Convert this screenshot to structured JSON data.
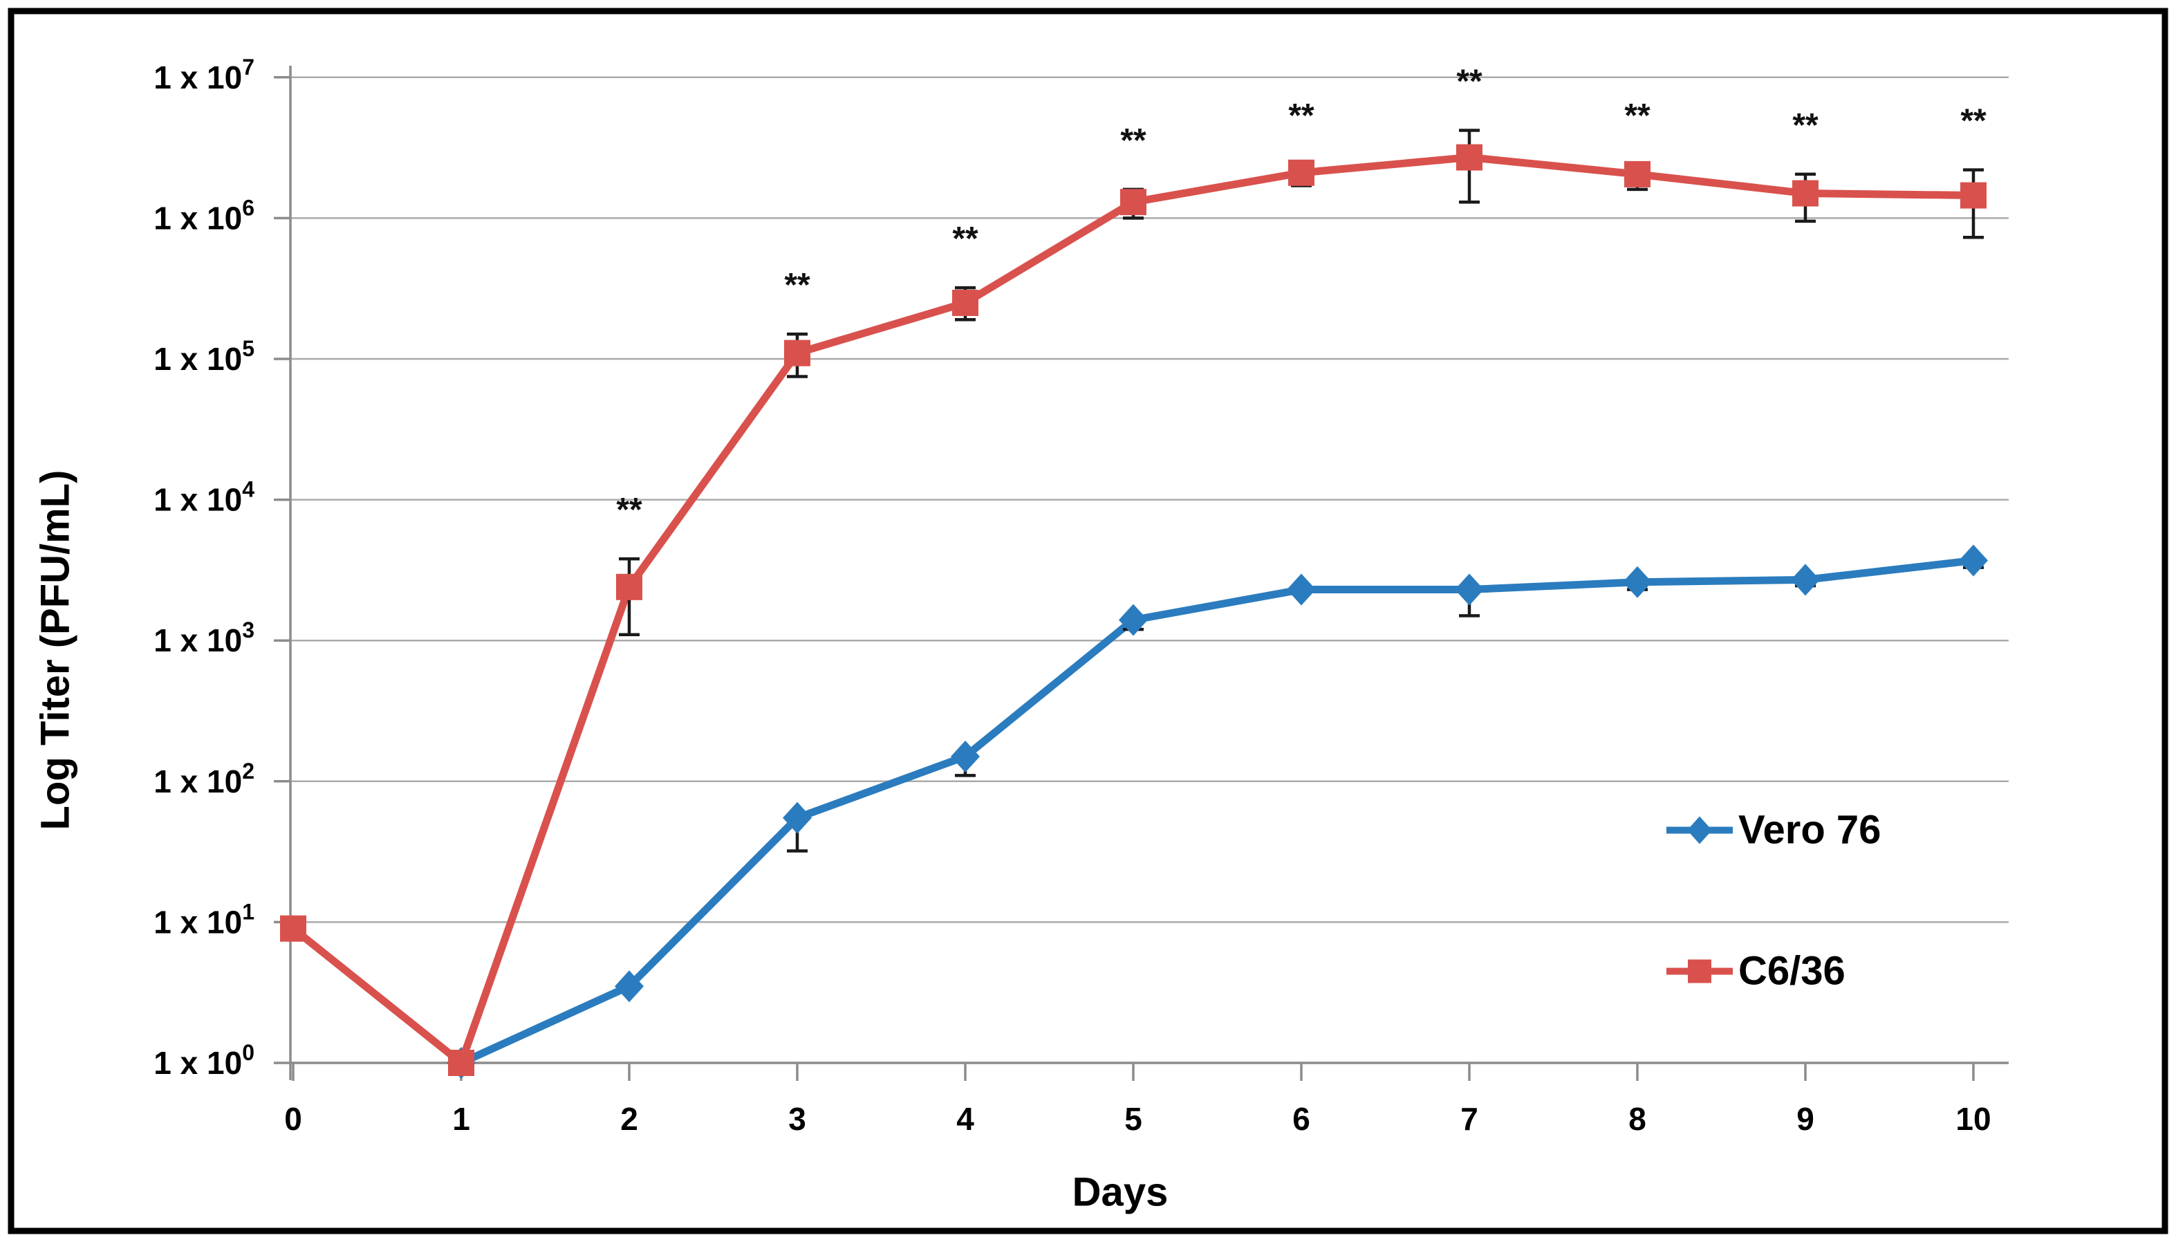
{
  "figure": {
    "background_color": "#ffffff",
    "frame_color": "#000000"
  },
  "chart_data": {
    "type": "line",
    "title": "",
    "xlabel": "Days",
    "ylabel": "Log Titer (PFU/mL)",
    "x_ticks": [
      "0",
      "1",
      "2",
      "3",
      "4",
      "5",
      "6",
      "7",
      "8",
      "9",
      "10"
    ],
    "y_axis": {
      "scale": "log10",
      "ylim": [
        1,
        10000000
      ],
      "tick_label_base": "1 x 10",
      "tick_exponents": [
        "0",
        "1",
        "2",
        "3",
        "4",
        "5",
        "6",
        "7"
      ]
    },
    "grid": {
      "shown": true,
      "color": "#ABABAB",
      "axis_color": "#8C8C8C"
    },
    "error_bar_color": "#1A1A1A",
    "significance": {
      "symbol": "**",
      "color": "#111111",
      "series": "C6/36",
      "days": [
        2,
        3,
        4,
        5,
        6,
        7,
        8,
        9,
        10
      ]
    },
    "series": [
      {
        "name": "Vero 76",
        "color": "#2B7CBE",
        "marker": "diamond",
        "points": [
          {
            "day": 1,
            "titer": 1
          },
          {
            "day": 2,
            "titer": 3.5
          },
          {
            "day": 3,
            "titer": 55,
            "err_lo": 32
          },
          {
            "day": 4,
            "titer": 150,
            "err_lo": 110
          },
          {
            "day": 5,
            "titer": 1400,
            "err_lo": 1200
          },
          {
            "day": 6,
            "titer": 2300
          },
          {
            "day": 7,
            "titer": 2300,
            "err_lo": 1500
          },
          {
            "day": 8,
            "titer": 2600,
            "err_lo": 2300
          },
          {
            "day": 9,
            "titer": 2700,
            "err_lo": 2450
          },
          {
            "day": 10,
            "titer": 3700,
            "err_lo": 3300
          }
        ]
      },
      {
        "name": "C6/36",
        "color": "#D9514D",
        "marker": "square",
        "points": [
          {
            "day": 0,
            "titer": 9
          },
          {
            "day": 1,
            "titer": 1
          },
          {
            "day": 2,
            "titer": 2400,
            "err_lo": 1100,
            "err_hi": 3800
          },
          {
            "day": 3,
            "titer": 110000,
            "err_lo": 75000,
            "err_hi": 150000
          },
          {
            "day": 4,
            "titer": 250000,
            "err_lo": 190000,
            "err_hi": 320000
          },
          {
            "day": 5,
            "titer": 1300000,
            "err_lo": 1000000,
            "err_hi": 1600000
          },
          {
            "day": 6,
            "titer": 2100000,
            "err_lo": 1700000,
            "err_hi": 2400000
          },
          {
            "day": 7,
            "titer": 2700000,
            "err_lo": 1300000,
            "err_hi": 4200000
          },
          {
            "day": 8,
            "titer": 2050000,
            "err_lo": 1600000,
            "err_hi": 2400000
          },
          {
            "day": 9,
            "titer": 1500000,
            "err_lo": 950000,
            "err_hi": 2050000
          },
          {
            "day": 10,
            "titer": 1450000,
            "err_lo": 730000,
            "err_hi": 2200000
          }
        ]
      }
    ],
    "legend": {
      "position": "inside-right",
      "items": [
        "Vero 76",
        "C6/36"
      ]
    }
  }
}
